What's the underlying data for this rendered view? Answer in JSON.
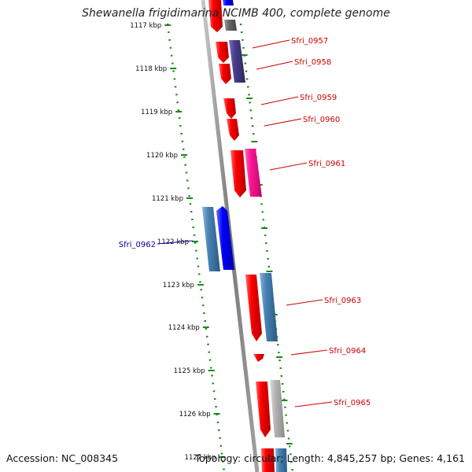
{
  "title": "Shewanella frigidimarina NCIMB 400, complete genome",
  "accession_label": "Accession: NC_008345",
  "topology_label": "Topology: circular; Length: 4,845,257 bp; Genes: 4,161",
  "colors": {
    "backbone": "#8a8a8a",
    "tick": "#1a8a1a",
    "forward_label": "#cc0000",
    "reverse_label": "#000099",
    "red_gene": "#ff0000",
    "blue_gene": "#0000ff",
    "steel_gene": "#4682b4",
    "purple_gene": "#483d8b",
    "pink_gene": "#ff1493",
    "gray_gene": "#a9a9a9"
  },
  "ruler": [
    {
      "label": "1117 kbp"
    },
    {
      "label": "1118 kbp"
    },
    {
      "label": "1119 kbp"
    },
    {
      "label": "1120 kbp"
    },
    {
      "label": "1121 kbp"
    },
    {
      "label": "1122 kbp"
    },
    {
      "label": "1123 kbp"
    },
    {
      "label": "1124 kbp"
    },
    {
      "label": "1125 kbp"
    },
    {
      "label": "1126 kbp"
    },
    {
      "label": "1127 kbp"
    }
  ],
  "gene_labels": [
    {
      "label": "Sfri_0957",
      "strand": "forward"
    },
    {
      "label": "Sfri_0958",
      "strand": "forward"
    },
    {
      "label": "Sfri_0959",
      "strand": "forward"
    },
    {
      "label": "Sfri_0960",
      "strand": "forward"
    },
    {
      "label": "Sfri_0961",
      "strand": "forward"
    },
    {
      "label": "Sfri_0962",
      "strand": "reverse"
    },
    {
      "label": "Sfri_0963",
      "strand": "forward"
    },
    {
      "label": "Sfri_0964",
      "strand": "forward"
    },
    {
      "label": "Sfri_0965",
      "strand": "forward"
    }
  ]
}
